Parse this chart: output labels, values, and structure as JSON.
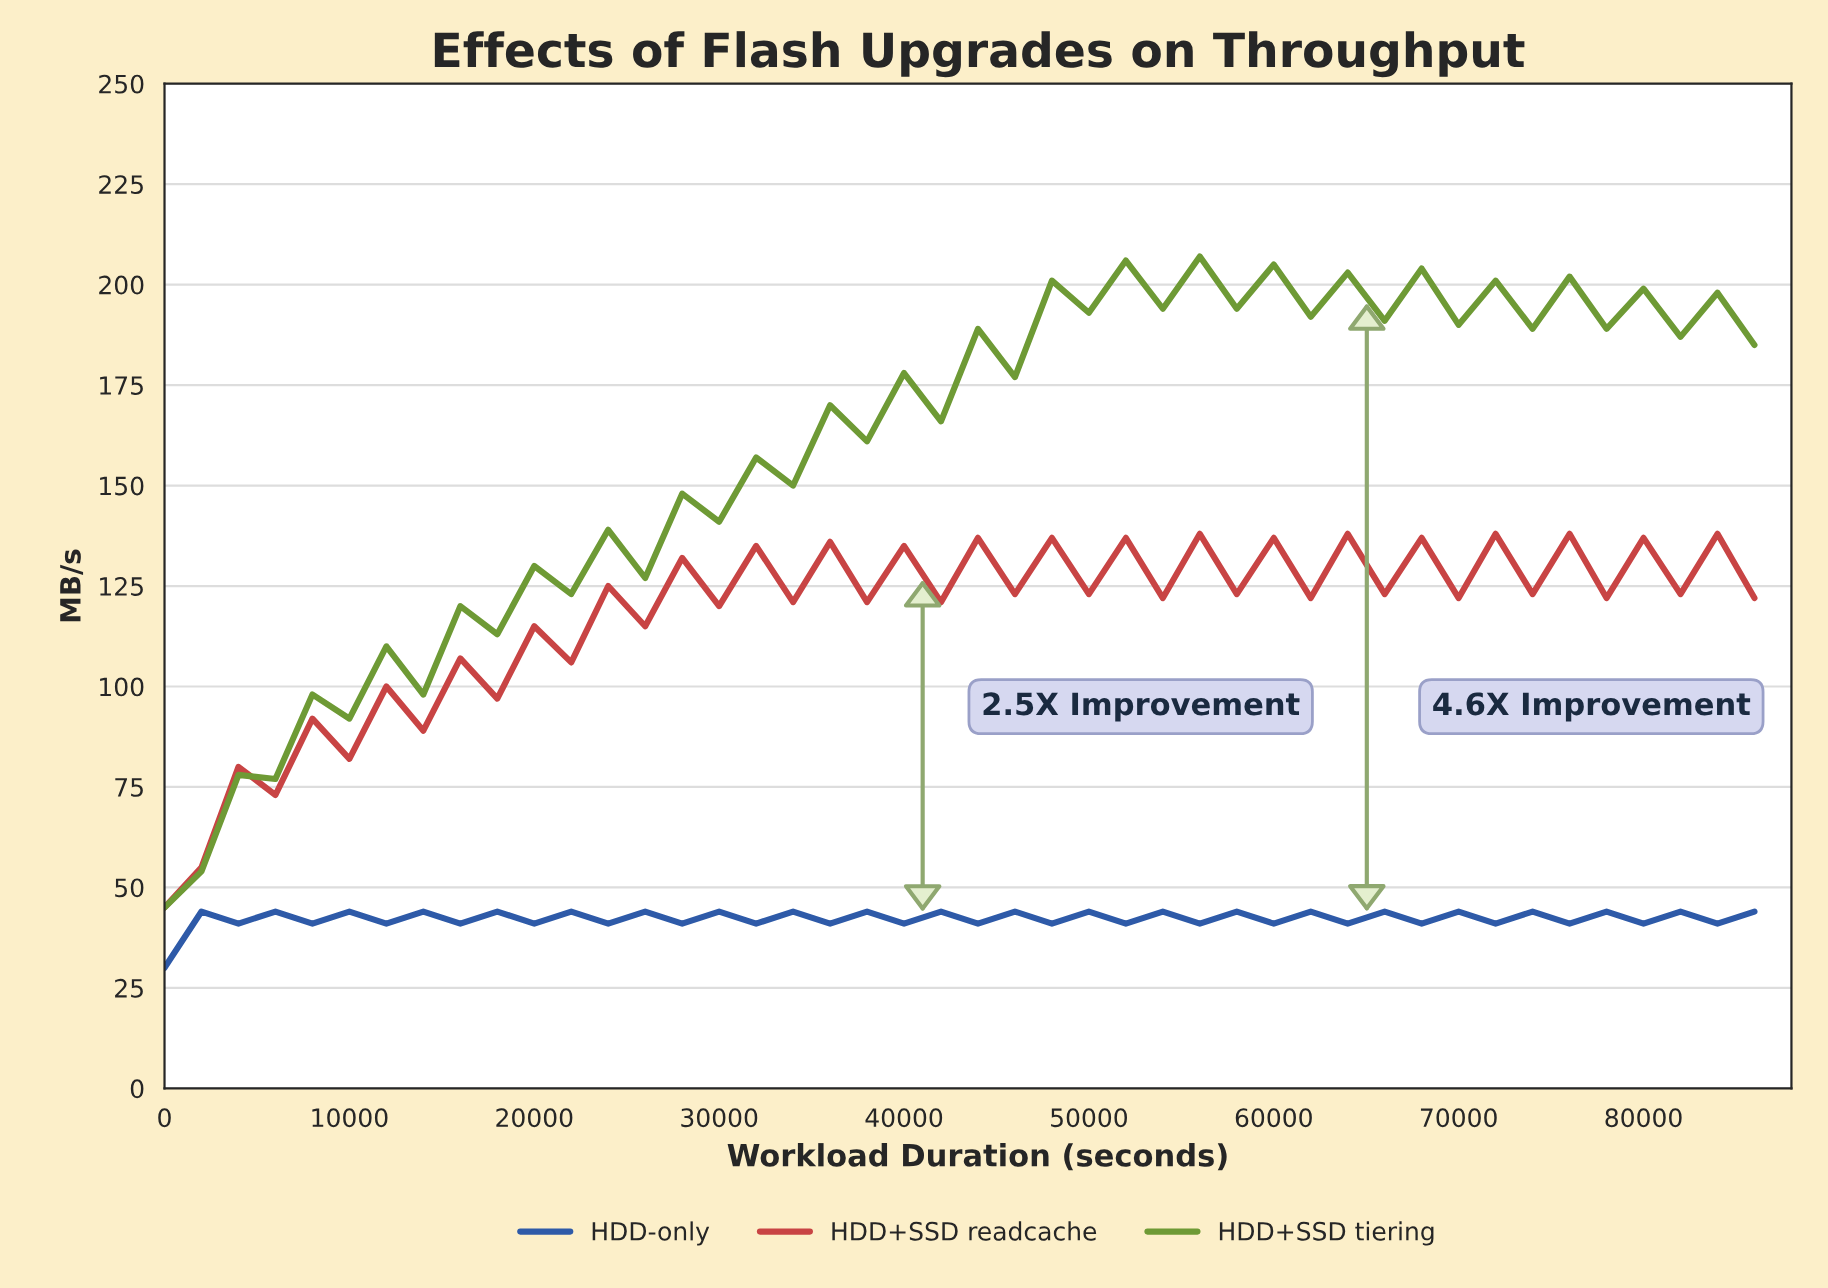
{
  "chart_data": {
    "type": "line",
    "title": "Effects of Flash Upgrades on Throughput",
    "xlabel": "Workload Duration (seconds)",
    "ylabel": "MB/s",
    "x": [
      0,
      2000,
      4000,
      6000,
      8000,
      10000,
      12000,
      14000,
      16000,
      18000,
      20000,
      22000,
      24000,
      26000,
      28000,
      30000,
      32000,
      34000,
      36000,
      38000,
      40000,
      42000,
      44000,
      46000,
      48000,
      50000,
      52000,
      54000,
      56000,
      58000,
      60000,
      62000,
      64000,
      66000,
      68000,
      70000,
      72000,
      74000,
      76000,
      78000,
      80000,
      82000,
      84000,
      86000
    ],
    "series": [
      {
        "name": "HDD-only",
        "color": "#2e5aa8",
        "values": [
          30,
          44,
          41,
          44,
          41,
          44,
          41,
          44,
          41,
          44,
          41,
          44,
          41,
          44,
          41,
          44,
          41,
          44,
          41,
          44,
          41,
          44,
          41,
          44,
          41,
          44,
          41,
          44,
          41,
          44,
          41,
          44,
          41,
          44,
          41,
          44,
          41,
          44,
          41,
          44,
          41,
          44,
          41,
          44
        ]
      },
      {
        "name": "HDD+SSD readcache",
        "color": "#c84444",
        "values": [
          45,
          55,
          80,
          73,
          92,
          82,
          100,
          89,
          107,
          97,
          115,
          106,
          125,
          115,
          132,
          120,
          135,
          121,
          136,
          121,
          135,
          121,
          137,
          123,
          137,
          123,
          137,
          122,
          138,
          123,
          137,
          122,
          138,
          123,
          137,
          122,
          138,
          123,
          138,
          122,
          137,
          123,
          138,
          122
        ]
      },
      {
        "name": "HDD+SSD tiering",
        "color": "#6e9a35",
        "values": [
          45,
          54,
          78,
          77,
          98,
          92,
          110,
          98,
          120,
          113,
          130,
          123,
          139,
          127,
          148,
          141,
          157,
          150,
          170,
          161,
          178,
          166,
          189,
          177,
          201,
          193,
          206,
          194,
          207,
          194,
          205,
          192,
          203,
          191,
          204,
          190,
          201,
          189,
          202,
          189,
          199,
          187,
          198,
          185
        ]
      }
    ],
    "xlim": [
      0,
      88000
    ],
    "xticks": [
      0,
      10000,
      20000,
      30000,
      40000,
      50000,
      60000,
      70000,
      80000
    ],
    "ylim": [
      0,
      250
    ],
    "yticks": [
      0,
      25,
      50,
      75,
      100,
      125,
      150,
      175,
      200,
      225,
      250
    ],
    "grid": "y",
    "legend": "bottom",
    "line_style": "solid",
    "marker": "none",
    "annotations": [
      "2.5X Improvement",
      "4.6X Improvement"
    ]
  }
}
